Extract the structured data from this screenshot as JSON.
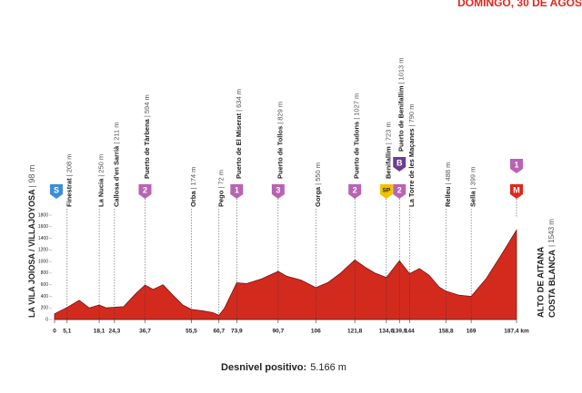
{
  "chart_data": {
    "type": "area",
    "header": "DOMINGO, 30 DE AGOS",
    "start": {
      "name": "LA VILA JOIOSA / VILLAJOYOSA",
      "alt": "| 98 m",
      "badge": "S",
      "badge_color": "#3a8fd6"
    },
    "finish": {
      "name": "ALTO DE AITANA",
      "region": "COSTA BLANCA",
      "alt": "| 1543 m",
      "badges": [
        {
          "text": "1",
          "color": "#b863b3"
        },
        {
          "text": "M",
          "color": "#e0261c"
        }
      ]
    },
    "footer": {
      "label": "Desnivel positivo:",
      "value": "5.166 m"
    },
    "color": "#d32a1e",
    "x": [
      0,
      5.1,
      10,
      14,
      18.1,
      21,
      24.3,
      28,
      33,
      36.7,
      40,
      44,
      48,
      52,
      55.5,
      60,
      64,
      66.7,
      69,
      73.9,
      78,
      84,
      90.7,
      94,
      100,
      106,
      111,
      116,
      121.8,
      126,
      130,
      134.6,
      139.9,
      144,
      148,
      152,
      156,
      158.8,
      164,
      169,
      175,
      181,
      187.4
    ],
    "values": [
      98,
      208,
      330,
      200,
      250,
      200,
      211,
      220,
      450,
      594,
      520,
      600,
      420,
      250,
      174,
      150,
      120,
      72,
      200,
      634,
      620,
      700,
      829,
      750,
      680,
      550,
      640,
      800,
      1027,
      900,
      800,
      723,
      1013,
      790,
      880,
      760,
      560,
      488,
      420,
      399,
      700,
      1100,
      1543
    ],
    "xlim": [
      0,
      187.4
    ],
    "ylim": [
      0,
      1800
    ],
    "yticks": [
      0,
      200,
      400,
      600,
      800,
      1000,
      1200,
      1400,
      1600,
      1800
    ],
    "xticks": [
      0,
      {
        "value": 5.1,
        "label": "5,1"
      },
      {
        "value": 18.1,
        "label": "18,1"
      },
      {
        "value": 24.3,
        "label": "24,3"
      },
      {
        "value": 36.7,
        "label": "36,7"
      },
      {
        "value": 55.5,
        "label": "55,5"
      },
      {
        "value": 66.7,
        "label": "66,7"
      },
      {
        "value": 73.9,
        "label": "73,9"
      },
      {
        "value": 90.7,
        "label": "90,7"
      },
      106,
      {
        "value": 121.8,
        "label": "121,8"
      },
      {
        "value": 134.6,
        "label": "134,6"
      },
      {
        "value": 139.9,
        "label": "139,9"
      },
      144,
      {
        "value": 158.8,
        "label": "158,8"
      },
      169,
      {
        "value": 187.4,
        "label": "187,4 km"
      }
    ],
    "waypoints": [
      {
        "km": 5.1,
        "name": "Finestrat",
        "alt": "| 208 m"
      },
      {
        "km": 18.1,
        "name": "La Nucia",
        "alt": "| 250 m"
      },
      {
        "km": 24.3,
        "name": "Callosa d'en Sarrià",
        "alt": "| 211 m"
      },
      {
        "km": 36.7,
        "name": "Puerto de Tàrbena",
        "alt": "| 594 m",
        "badges": [
          {
            "text": "2",
            "color": "#b863b3"
          }
        ]
      },
      {
        "km": 55.5,
        "name": "Orba",
        "alt": "| 174 m"
      },
      {
        "km": 66.7,
        "name": "Pego",
        "alt": "| 72 m"
      },
      {
        "km": 73.9,
        "name": "Puerto de El Miserat",
        "alt": "| 634 m",
        "badges": [
          {
            "text": "1",
            "color": "#b863b3"
          }
        ]
      },
      {
        "km": 90.7,
        "name": "Puerto de Tollos",
        "alt": "| 829 m",
        "badges": [
          {
            "text": "3",
            "color": "#b863b3"
          }
        ]
      },
      {
        "km": 106,
        "name": "Gorga",
        "alt": "| 550 m"
      },
      {
        "km": 121.8,
        "name": "Puerto de Tudons",
        "alt": "| 1027 m",
        "badges": [
          {
            "text": "2",
            "color": "#b863b3"
          }
        ]
      },
      {
        "km": 134.6,
        "name": "Benifallim",
        "alt": "| 723 m",
        "badges": [
          {
            "text": "SP",
            "color": "#f2c200"
          }
        ]
      },
      {
        "km": 139.9,
        "name": "Puerto de Benifallim",
        "alt": "| 1013 m",
        "badges": [
          {
            "text": "B",
            "color": "#6b3f8c"
          },
          {
            "text": "2",
            "color": "#b863b3"
          }
        ]
      },
      {
        "km": 144,
        "name": "La Torre de les Maçanes",
        "alt": "| 790 m"
      },
      {
        "km": 158.8,
        "name": "Relleu",
        "alt": "| 488 m"
      },
      {
        "km": 169,
        "name": "Sella",
        "alt": "| 399 m"
      }
    ]
  }
}
